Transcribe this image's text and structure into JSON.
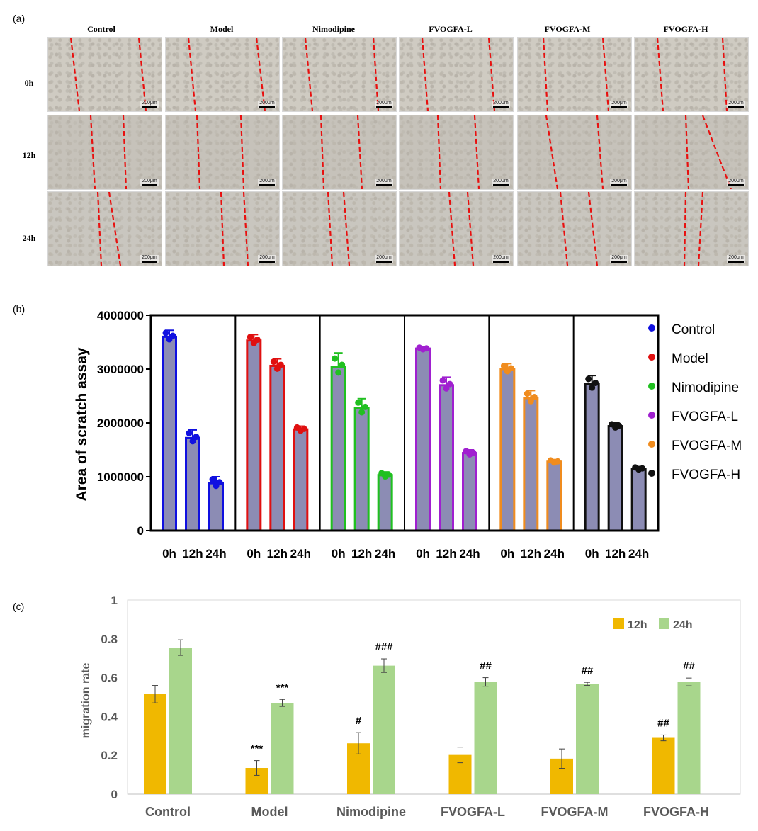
{
  "panel_labels": {
    "a": "(a)",
    "b": "(b)",
    "c": "(c)"
  },
  "panel_a": {
    "columns": [
      "Control",
      "Model",
      "Nimodipine",
      "FVOGFA-L",
      "FVOGFA-M",
      "FVOGFA-H"
    ],
    "rows": [
      "0h",
      "12h",
      "24h"
    ],
    "scale_label": "200μm"
  },
  "colors": {
    "Control": "#1010e0",
    "Model": "#e01010",
    "Nimodipine": "#20c020",
    "FVOGFA-L": "#a020d0",
    "FVOGFA-M": "#f08c1e",
    "FVOGFA-H": "#111111",
    "bar_fill": "#8c8cb4",
    "c_12h": "#f0b800",
    "c_24h": "#a8d68c"
  },
  "chart_data": [
    {
      "type": "bar",
      "panel": "b",
      "ylabel": "Area of scratch assay",
      "ylim": [
        0,
        4000000
      ],
      "yticks": [
        "0",
        "1000000",
        "2000000",
        "3000000",
        "4000000"
      ],
      "categories": [
        "0h",
        "12h",
        "24h"
      ],
      "series": [
        {
          "name": "Control",
          "values": [
            3600000,
            1720000,
            880000
          ],
          "errors": [
            120000,
            150000,
            120000
          ]
        },
        {
          "name": "Model",
          "values": [
            3530000,
            3060000,
            1880000
          ],
          "errors": [
            110000,
            130000,
            60000
          ]
        },
        {
          "name": "Nimodipine",
          "values": [
            3040000,
            2270000,
            1030000
          ],
          "errors": [
            260000,
            180000,
            60000
          ]
        },
        {
          "name": "FVOGFA-L",
          "values": [
            3380000,
            2700000,
            1440000
          ],
          "errors": [
            30000,
            150000,
            60000
          ]
        },
        {
          "name": "FVOGFA-M",
          "values": [
            3000000,
            2460000,
            1280000
          ],
          "errors": [
            100000,
            140000,
            40000
          ]
        },
        {
          "name": "FVOGFA-H",
          "values": [
            2720000,
            1940000,
            1150000
          ],
          "errors": [
            160000,
            60000,
            40000
          ]
        }
      ],
      "legend": [
        "Control",
        "Model",
        "Nimodipine",
        "FVOGFA-L",
        "FVOGFA-M",
        "FVOGFA-H"
      ],
      "legend_position": "right"
    },
    {
      "type": "bar",
      "panel": "c",
      "ylabel": "migration rate",
      "ylim": [
        0,
        1
      ],
      "yticks": [
        "0",
        "0.2",
        "0.4",
        "0.6",
        "0.8",
        "1"
      ],
      "categories": [
        "Control",
        "Model",
        "Nimodipine",
        "FVOGFA-L",
        "FVOGFA-M",
        "FVOGFA-H"
      ],
      "series": [
        {
          "name": "12h",
          "values": [
            0.515,
            0.135,
            0.262,
            0.202,
            0.183,
            0.29
          ],
          "errors": [
            0.045,
            0.038,
            0.055,
            0.04,
            0.05,
            0.015
          ],
          "annotations": [
            "",
            "***",
            "#",
            "",
            "",
            "##"
          ]
        },
        {
          "name": "24h",
          "values": [
            0.755,
            0.47,
            0.662,
            0.578,
            0.568,
            0.578
          ],
          "errors": [
            0.04,
            0.018,
            0.035,
            0.022,
            0.008,
            0.02
          ],
          "annotations": [
            "",
            "***",
            "###",
            "##",
            "##",
            "##"
          ]
        }
      ],
      "legend": [
        "12h",
        "24h"
      ],
      "legend_position": "top-right"
    }
  ]
}
